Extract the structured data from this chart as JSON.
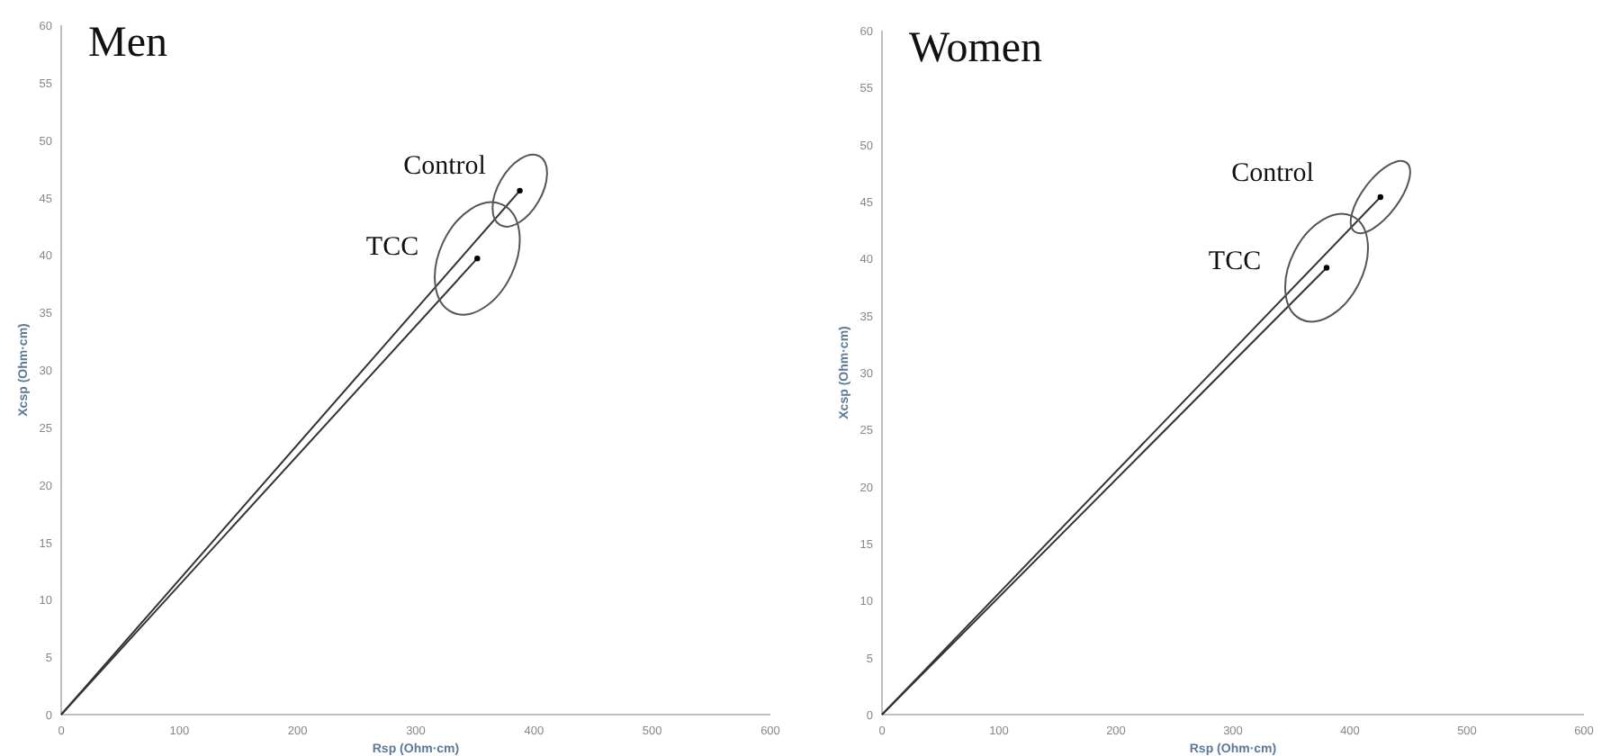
{
  "chart_data": [
    {
      "type": "line",
      "title": "Men",
      "xlabel": "Rsp (Ohm·cm)",
      "ylabel": "Xcsp (Ohm·cm)",
      "xlim": [
        0,
        600
      ],
      "xticks": [
        0,
        100,
        200,
        300,
        400,
        500,
        600
      ],
      "ylim": [
        0,
        60
      ],
      "yticks": [
        0,
        5,
        10,
        15,
        20,
        25,
        30,
        35,
        40,
        45,
        50,
        55,
        60
      ],
      "grid": false,
      "line_style": "solid",
      "series": [
        {
          "color": "#333333",
          "x": [
            0,
            388
          ],
          "values": [
            0,
            45.6
          ]
        },
        {
          "color": "#333333",
          "x": [
            0,
            352
          ],
          "values": [
            0,
            39.7
          ]
        },
        {
          "type": "scatter",
          "marker": "circle",
          "color": "#000000",
          "x": [
            388,
            352
          ],
          "values": [
            45.6,
            39.7
          ]
        }
      ],
      "annotations": [
        "Control",
        "TCC"
      ]
    },
    {
      "type": "line",
      "title": "Women",
      "xlabel": "Rsp (Ohm·cm)",
      "ylabel": "Xcsp (Ohm·cm)",
      "xlim": [
        0,
        600
      ],
      "xticks": [
        0,
        100,
        200,
        300,
        400,
        500,
        600
      ],
      "ylim": [
        0,
        60
      ],
      "yticks": [
        0,
        5,
        10,
        15,
        20,
        25,
        30,
        35,
        40,
        45,
        50,
        55,
        60
      ],
      "grid": false,
      "line_style": "solid",
      "series": [
        {
          "color": "#333333",
          "x": [
            0,
            426
          ],
          "values": [
            0,
            45.4
          ]
        },
        {
          "color": "#333333",
          "x": [
            0,
            380
          ],
          "values": [
            0,
            39.2
          ]
        },
        {
          "type": "scatter",
          "marker": "circle",
          "color": "#000000",
          "x": [
            426,
            380
          ],
          "values": [
            45.4,
            39.2
          ]
        }
      ],
      "annotations": [
        "Control",
        "TCC"
      ]
    }
  ]
}
